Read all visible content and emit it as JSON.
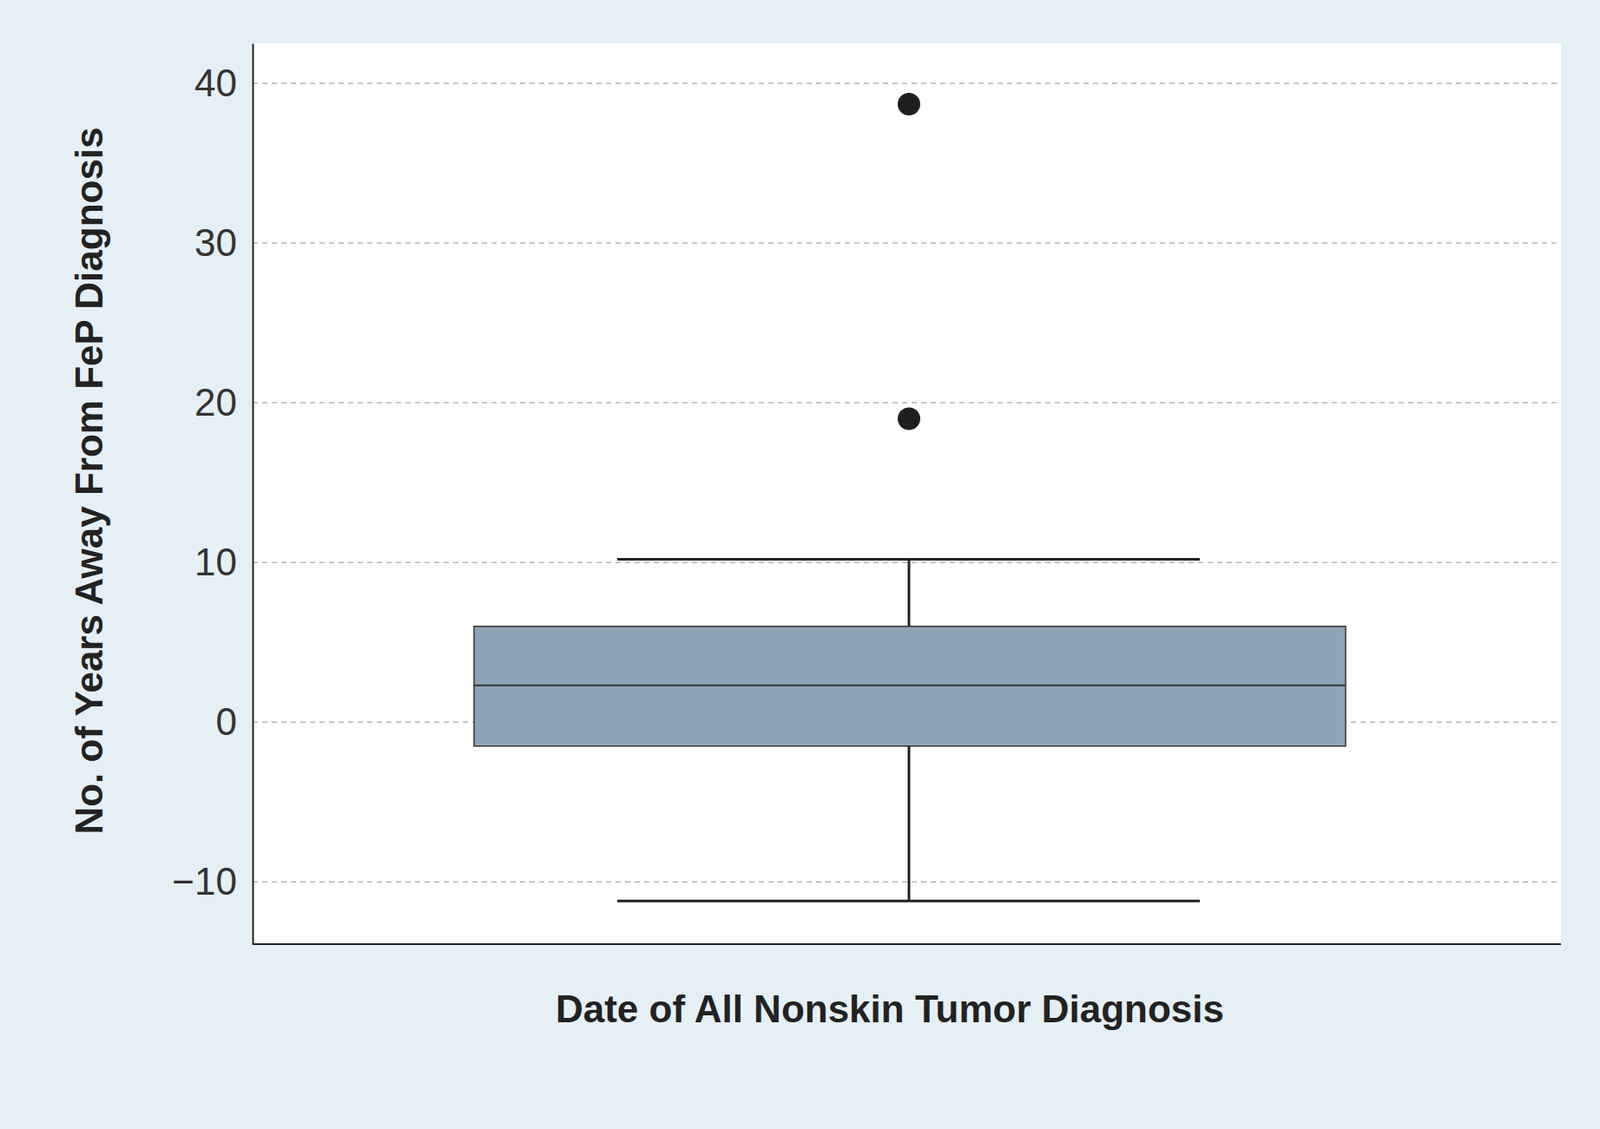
{
  "chart_data": {
    "type": "box",
    "x_label": "Date of All Nonskin Tumor Diagnosis",
    "y_label": "No. of Years Away From FeP Diagnosis",
    "box": {
      "whisker_low": -11.2,
      "q1": -1.5,
      "median": 2.3,
      "q3": 6.0,
      "whisker_high": 10.2,
      "outliers": [
        19.0,
        38.7
      ]
    },
    "color": "#8fa3b8",
    "ylim": [
      -13.9,
      42.5
    ],
    "yticks": [
      {
        "value": -10,
        "label": "−10"
      },
      0,
      10,
      20,
      30,
      40
    ],
    "grid": true
  }
}
